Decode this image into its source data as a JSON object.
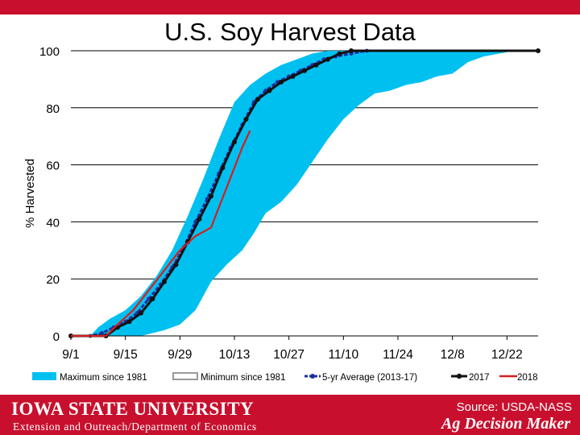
{
  "slide_title": "U.S. Soy Harvest Data",
  "footer": {
    "university": "IOWA STATE UNIVERSITY",
    "department": "Extension and Outreach/Department of Economics",
    "source": "Source: USDA-NASS",
    "brand": "Ag Decision Maker"
  },
  "colors": {
    "band": "#00c0f0",
    "minimum_line": "#9a9a9a",
    "five_yr": "#1e2fa0",
    "y2017": "#111111",
    "y2018": "#d42020",
    "grid": "#000000",
    "footer_bg": "#c8102e"
  },
  "chart_data": {
    "type": "area",
    "title": "",
    "xlabel": "",
    "ylabel": "% Harvested",
    "xunit": "days after Sep 1",
    "xlim": [
      0,
      120
    ],
    "ylim": [
      0,
      100
    ],
    "yticks": [
      0,
      20,
      40,
      60,
      80,
      100
    ],
    "xtick_labels": [
      "9/1",
      "9/15",
      "9/29",
      "10/13",
      "10/27",
      "11/10",
      "11/24",
      "12/8",
      "12/22"
    ],
    "grid": "horizontal",
    "legend": "bottom",
    "band": {
      "upper_name": "Maximum since 1981",
      "lower_name": "Minimum since 1981",
      "upper": [
        [
          0,
          0
        ],
        [
          5,
          0
        ],
        [
          7,
          3
        ],
        [
          10,
          6
        ],
        [
          14,
          9
        ],
        [
          18,
          14
        ],
        [
          22,
          21
        ],
        [
          26,
          30
        ],
        [
          30,
          42
        ],
        [
          34,
          55
        ],
        [
          38,
          69
        ],
        [
          42,
          82
        ],
        [
          46,
          88
        ],
        [
          50,
          92
        ],
        [
          54,
          95
        ],
        [
          58,
          97
        ],
        [
          62,
          99
        ],
        [
          66,
          100
        ],
        [
          120,
          100
        ]
      ],
      "lower": [
        [
          0,
          0
        ],
        [
          18,
          0
        ],
        [
          21,
          1
        ],
        [
          24,
          2
        ],
        [
          28,
          4
        ],
        [
          32,
          9
        ],
        [
          34,
          14
        ],
        [
          36,
          19
        ],
        [
          40,
          25
        ],
        [
          44,
          30
        ],
        [
          47,
          36
        ],
        [
          50,
          43
        ],
        [
          54,
          47
        ],
        [
          58,
          53
        ],
        [
          62,
          61
        ],
        [
          66,
          69
        ],
        [
          70,
          76
        ],
        [
          74,
          81
        ],
        [
          78,
          85
        ],
        [
          82,
          86
        ],
        [
          86,
          88
        ],
        [
          90,
          89
        ],
        [
          94,
          91
        ],
        [
          98,
          92
        ],
        [
          102,
          96
        ],
        [
          106,
          98
        ],
        [
          110,
          99
        ],
        [
          114,
          100
        ],
        [
          120,
          100
        ]
      ]
    },
    "series": [
      {
        "name": "5-yr Average (2013-17)",
        "values": [
          [
            0,
            0
          ],
          [
            5,
            0
          ],
          [
            8,
            1
          ],
          [
            11,
            3
          ],
          [
            14,
            5
          ],
          [
            17,
            8
          ],
          [
            20,
            13
          ],
          [
            23,
            18
          ],
          [
            26,
            24
          ],
          [
            29,
            31
          ],
          [
            32,
            40
          ],
          [
            35,
            48
          ],
          [
            38,
            57
          ],
          [
            41,
            66
          ],
          [
            44,
            74
          ],
          [
            47,
            82
          ],
          [
            50,
            86
          ],
          [
            53,
            89
          ],
          [
            56,
            91
          ],
          [
            59,
            93
          ],
          [
            62,
            95
          ],
          [
            65,
            97
          ],
          [
            68,
            98
          ],
          [
            72,
            99
          ],
          [
            76,
            100
          ],
          [
            120,
            100
          ]
        ]
      },
      {
        "name": "2017",
        "values": [
          [
            0,
            0
          ],
          [
            9,
            0
          ],
          [
            12,
            3
          ],
          [
            15,
            5
          ],
          [
            18,
            8
          ],
          [
            21,
            13
          ],
          [
            24,
            19
          ],
          [
            27,
            25
          ],
          [
            30,
            33
          ],
          [
            33,
            41
          ],
          [
            36,
            49
          ],
          [
            39,
            59
          ],
          [
            42,
            68
          ],
          [
            45,
            76
          ],
          [
            48,
            83
          ],
          [
            51,
            86
          ],
          [
            54,
            89
          ],
          [
            57,
            91
          ],
          [
            60,
            93
          ],
          [
            63,
            95
          ],
          [
            66,
            97
          ],
          [
            69,
            99
          ],
          [
            72,
            100
          ],
          [
            120,
            100
          ]
        ]
      },
      {
        "name": "2018",
        "values": [
          [
            0,
            0
          ],
          [
            9,
            0
          ],
          [
            12,
            4
          ],
          [
            16,
            9
          ],
          [
            20,
            16
          ],
          [
            24,
            23
          ],
          [
            28,
            30
          ],
          [
            32,
            35
          ],
          [
            36,
            38
          ],
          [
            40,
            52
          ],
          [
            44,
            66
          ],
          [
            46,
            72
          ]
        ]
      }
    ]
  }
}
